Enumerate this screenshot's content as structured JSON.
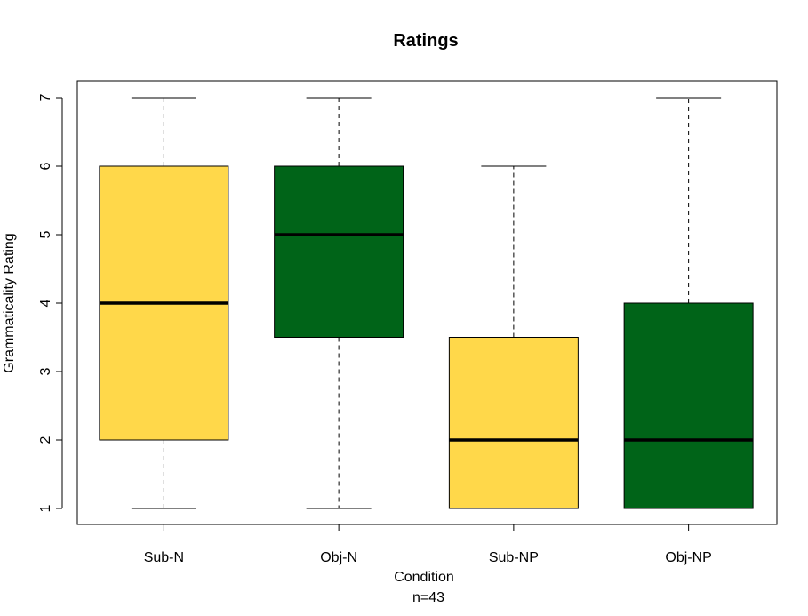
{
  "chart_data": {
    "type": "box",
    "title": "Ratings",
    "xlabel": "Condition",
    "subtitle": "n=43",
    "ylabel": "Grammaticality Rating",
    "ylim": [
      0.75,
      7.25
    ],
    "yticks": [
      1,
      2,
      3,
      4,
      5,
      6,
      7
    ],
    "categories": [
      "Sub-N",
      "Obj-N",
      "Sub-NP",
      "Obj-NP"
    ],
    "boxes": [
      {
        "category": "Sub-N",
        "min": 1,
        "q1": 2,
        "median": 4,
        "q3": 6,
        "max": 7,
        "color": "#FFD84A"
      },
      {
        "category": "Obj-N",
        "min": 1,
        "q1": 3.5,
        "median": 5,
        "q3": 6,
        "max": 7,
        "color": "#006418"
      },
      {
        "category": "Sub-NP",
        "min": 1,
        "q1": 1,
        "median": 2,
        "q3": 3.5,
        "max": 6,
        "color": "#FFD84A"
      },
      {
        "category": "Obj-NP",
        "min": 1,
        "q1": 1,
        "median": 2,
        "q3": 4,
        "max": 7,
        "color": "#006418"
      }
    ],
    "grid": false,
    "legend": "none"
  }
}
